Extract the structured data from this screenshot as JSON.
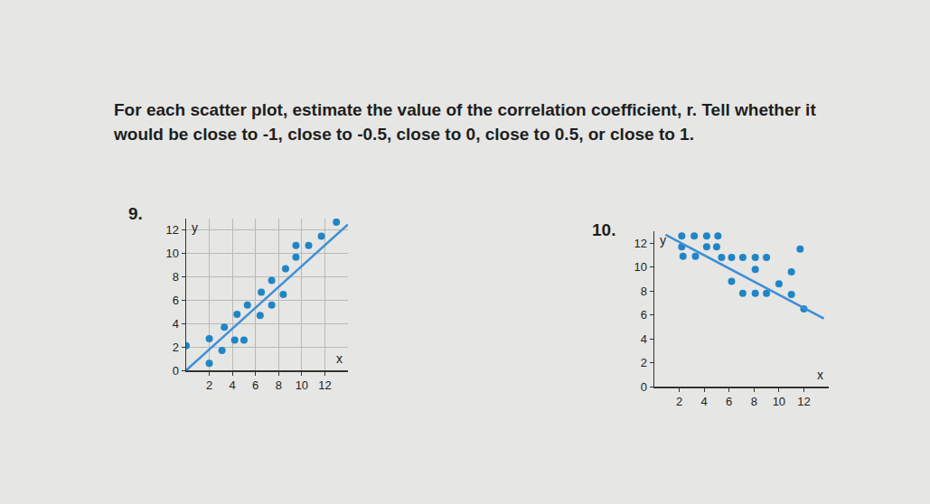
{
  "text": "For each scatter plot, estimate the value of the correlation coefficient, r. Tell whether it would be close to -1, close to -0.5, close to 0, close to 0.5, or close to 1.",
  "chart_data": [
    {
      "type": "scatter",
      "title": "9.",
      "x_label": "x",
      "y_label": "y",
      "xlim": [
        0,
        14
      ],
      "ylim": [
        0,
        13
      ],
      "xticks": [
        2,
        4,
        6,
        8,
        10,
        12
      ],
      "yticks": [
        0,
        2,
        4,
        6,
        8,
        10,
        12
      ],
      "grid": true,
      "series": [
        {
          "type": "scatter",
          "marker": "circle",
          "color": "#1f86c6",
          "x": [
            0,
            2,
            2,
            3.1,
            3.3,
            4.2,
            5,
            4.4,
            5.3,
            6.4,
            6.5,
            7.4,
            7.4,
            8.4,
            8.6,
            9.5,
            9.5,
            10.6,
            11.7,
            13
          ],
          "y": [
            2.1,
            0.6,
            2.7,
            1.7,
            3.7,
            2.6,
            2.6,
            4.8,
            5.6,
            4.7,
            6.7,
            5.6,
            7.7,
            6.5,
            8.7,
            9.7,
            10.7,
            10.7,
            11.5,
            12.7
          ]
        },
        {
          "type": "line",
          "line_style": "solid",
          "color": "#3d8fd6",
          "x": [
            0,
            14
          ],
          "y": [
            0,
            12.5
          ]
        }
      ]
    },
    {
      "type": "scatter",
      "title": "10.",
      "x_label": "x",
      "y_label": "y",
      "xlim": [
        0,
        14
      ],
      "ylim": [
        0,
        13
      ],
      "xticks": [
        2,
        4,
        6,
        8,
        10,
        12
      ],
      "yticks": [
        0,
        2,
        4,
        6,
        8,
        10,
        12
      ],
      "grid": false,
      "series": [
        {
          "type": "scatter",
          "marker": "circle",
          "color": "#1f86c6",
          "x": [
            2.2,
            3.2,
            4.2,
            5.1,
            2.2,
            4.2,
            5.0,
            11.7,
            2.3,
            3.3,
            5.4,
            6.2,
            7.1,
            8.1,
            9.0,
            8.1,
            11,
            6.2,
            10,
            7.1,
            8.1,
            9.0,
            11,
            12
          ],
          "y": [
            12.6,
            12.6,
            12.6,
            12.6,
            11.7,
            11.7,
            11.7,
            11.5,
            10.9,
            10.9,
            10.8,
            10.8,
            10.8,
            10.8,
            10.8,
            9.8,
            9.6,
            8.8,
            8.6,
            7.8,
            7.8,
            7.8,
            7.7,
            6.5
          ]
        },
        {
          "type": "line",
          "line_style": "solid",
          "color": "#3d8fd6",
          "x": [
            0.9,
            13.6
          ],
          "y": [
            12.7,
            5.7
          ]
        }
      ]
    }
  ]
}
